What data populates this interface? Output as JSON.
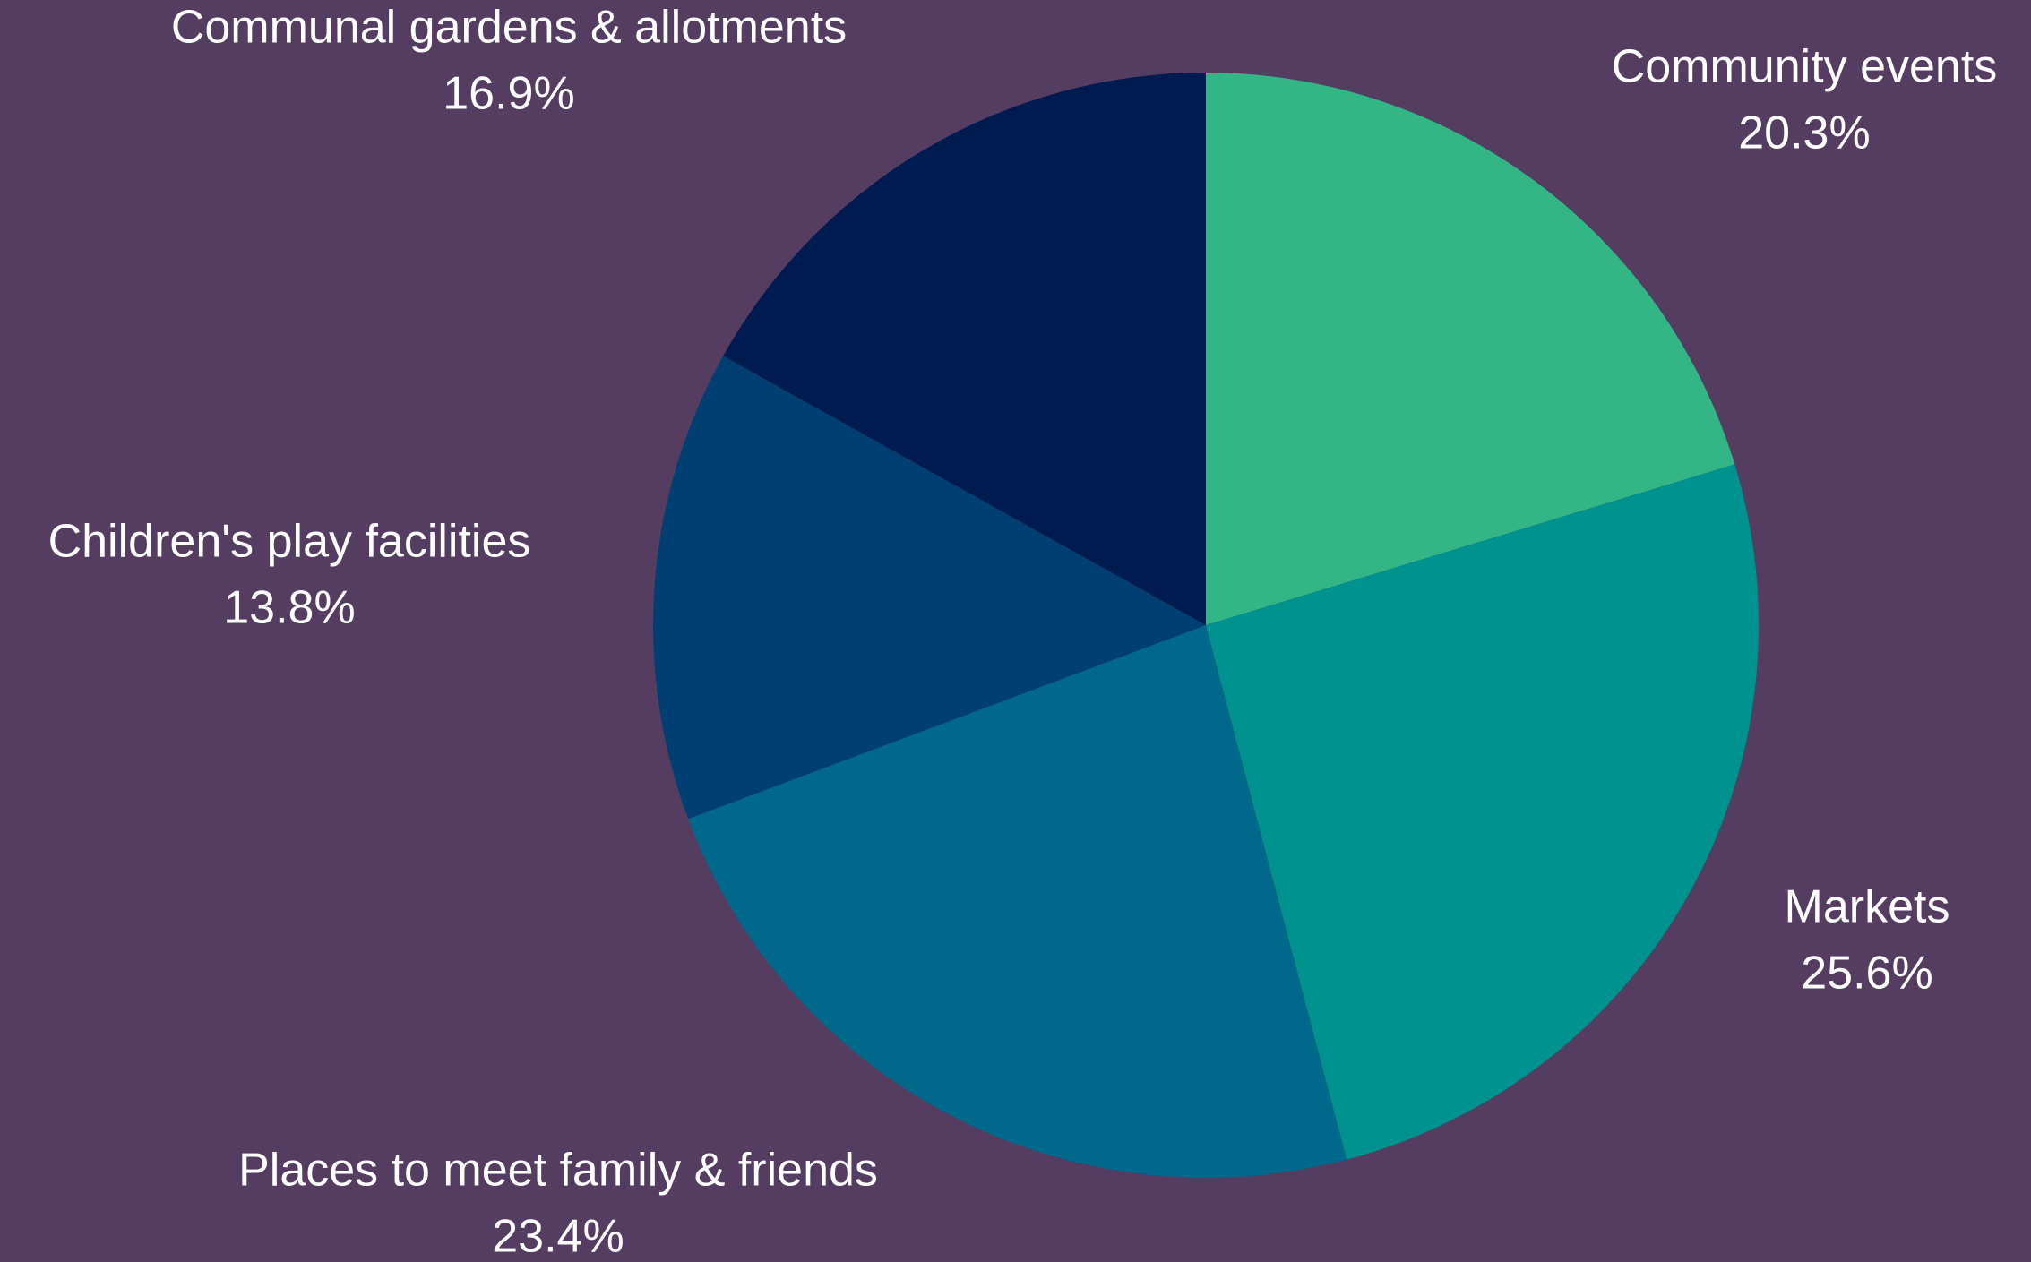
{
  "background_color": "#553d62",
  "label_color": "#ffffff",
  "chart_data": {
    "type": "pie",
    "title": "",
    "start_angle_deg": 0,
    "direction": "clockwise",
    "legend": "none",
    "labels_outside": true,
    "slices": [
      {
        "label": "Community events",
        "value": 20.3,
        "value_label": "20.3%",
        "color": "#33b586"
      },
      {
        "label": "Markets",
        "value": 25.6,
        "value_label": "25.6%",
        "color": "#00928e"
      },
      {
        "label": "Places to meet family & friends",
        "value": 23.4,
        "value_label": "23.4%",
        "color": "#00688a"
      },
      {
        "label": "Children's play facilities",
        "value": 13.8,
        "value_label": "13.8%",
        "color": "#003f72"
      },
      {
        "label": "Communal gardens & allotments",
        "value": 16.9,
        "value_label": "16.9%",
        "color": "#001b50"
      }
    ]
  }
}
